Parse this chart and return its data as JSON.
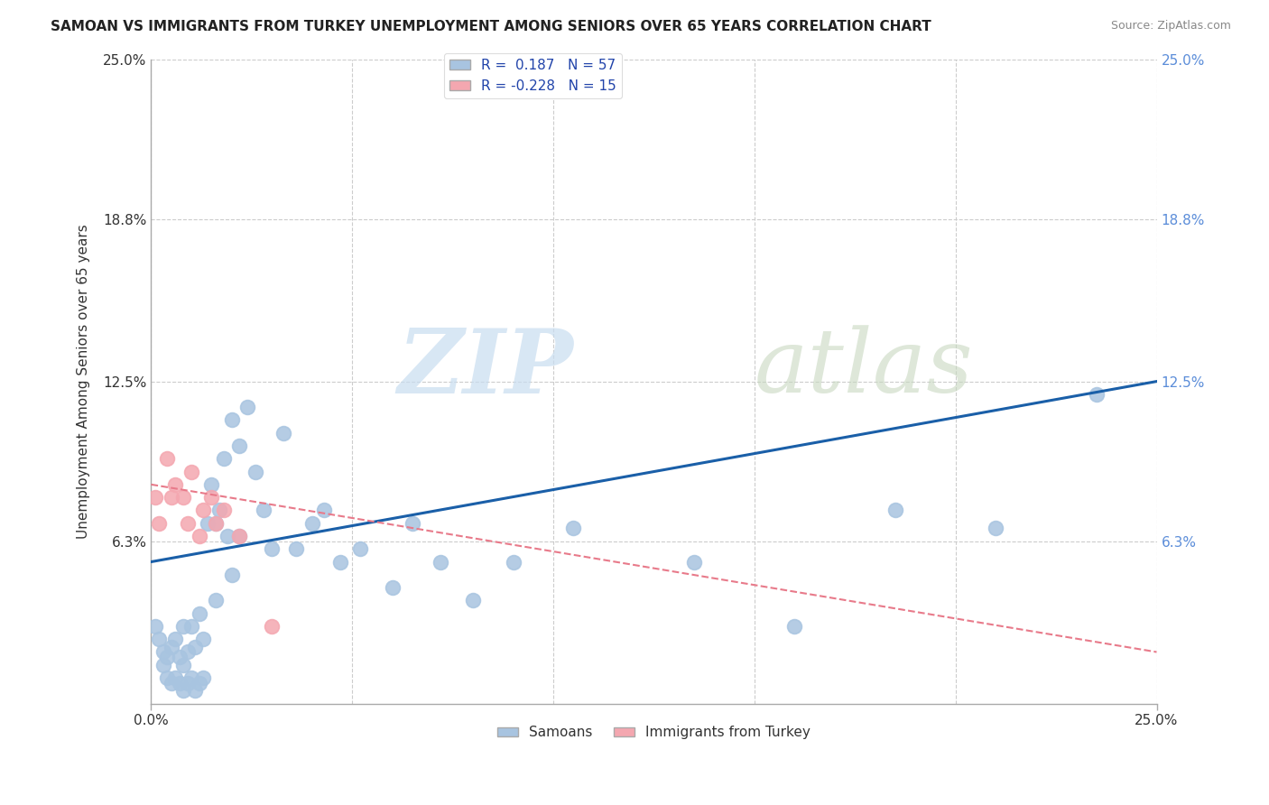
{
  "title": "SAMOAN VS IMMIGRANTS FROM TURKEY UNEMPLOYMENT AMONG SENIORS OVER 65 YEARS CORRELATION CHART",
  "source": "Source: ZipAtlas.com",
  "ylabel": "Unemployment Among Seniors over 65 years",
  "xlabel": "",
  "xlim": [
    0.0,
    0.25
  ],
  "ylim": [
    0.0,
    0.25
  ],
  "xtick_labels": [
    "0.0%",
    "25.0%"
  ],
  "xtick_positions": [
    0.0,
    0.25
  ],
  "ytick_labels": [
    "6.3%",
    "12.5%",
    "18.8%",
    "25.0%"
  ],
  "ytick_positions": [
    0.063,
    0.125,
    0.188,
    0.25
  ],
  "right_ytick_labels": [
    "25.0%",
    "18.8%",
    "12.5%",
    "6.3%"
  ],
  "samoan_R": "0.187",
  "samoan_N": "57",
  "turkey_R": "-0.228",
  "turkey_N": "15",
  "samoan_color": "#a8c4e0",
  "turkey_color": "#f4a7b0",
  "samoan_line_color": "#1a5fa8",
  "turkey_line_color": "#e87a8a",
  "background_color": "#ffffff",
  "grid_color": "#cccccc",
  "legend_label_samoan": "Samoans",
  "legend_label_turkey": "Immigrants from Turkey",
  "samoan_scatter_x": [
    0.001,
    0.002,
    0.003,
    0.003,
    0.004,
    0.004,
    0.005,
    0.005,
    0.006,
    0.006,
    0.007,
    0.007,
    0.008,
    0.008,
    0.008,
    0.009,
    0.009,
    0.01,
    0.01,
    0.011,
    0.011,
    0.012,
    0.012,
    0.013,
    0.013,
    0.014,
    0.015,
    0.016,
    0.016,
    0.017,
    0.018,
    0.019,
    0.02,
    0.02,
    0.022,
    0.022,
    0.024,
    0.026,
    0.028,
    0.03,
    0.033,
    0.036,
    0.04,
    0.043,
    0.047,
    0.052,
    0.06,
    0.065,
    0.072,
    0.08,
    0.09,
    0.105,
    0.135,
    0.16,
    0.185,
    0.21,
    0.235
  ],
  "samoan_scatter_y": [
    0.03,
    0.025,
    0.02,
    0.015,
    0.018,
    0.01,
    0.022,
    0.008,
    0.025,
    0.01,
    0.018,
    0.008,
    0.03,
    0.015,
    0.005,
    0.02,
    0.008,
    0.03,
    0.01,
    0.022,
    0.005,
    0.035,
    0.008,
    0.025,
    0.01,
    0.07,
    0.085,
    0.04,
    0.07,
    0.075,
    0.095,
    0.065,
    0.11,
    0.05,
    0.1,
    0.065,
    0.115,
    0.09,
    0.075,
    0.06,
    0.105,
    0.06,
    0.07,
    0.075,
    0.055,
    0.06,
    0.045,
    0.07,
    0.055,
    0.04,
    0.055,
    0.068,
    0.055,
    0.03,
    0.075,
    0.068,
    0.12
  ],
  "turkey_scatter_x": [
    0.001,
    0.002,
    0.004,
    0.005,
    0.006,
    0.008,
    0.009,
    0.01,
    0.012,
    0.013,
    0.015,
    0.016,
    0.018,
    0.022,
    0.03
  ],
  "turkey_scatter_y": [
    0.08,
    0.07,
    0.095,
    0.08,
    0.085,
    0.08,
    0.07,
    0.09,
    0.065,
    0.075,
    0.08,
    0.07,
    0.075,
    0.065,
    0.03
  ]
}
